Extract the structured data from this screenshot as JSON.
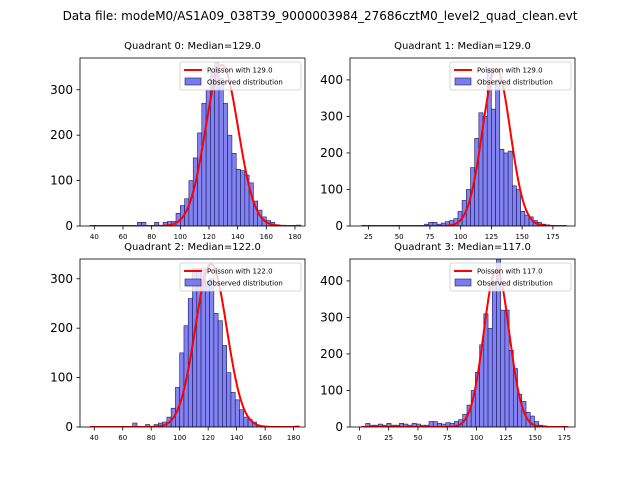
{
  "suptitle": "Data file: modeM0/AS1A09_038T39_9000003984_27686cztM0_level2_quad_clean.evt",
  "colors": {
    "bar_fill": "#7b7bef",
    "bar_edge": "#1a1a60",
    "poisson_line": "#ff0000"
  },
  "chart_data": [
    {
      "type": "bar",
      "title": "Quadrant 0: Median=129.0",
      "median": 129.0,
      "legend": {
        "line_label": "Poisson with 129.0",
        "bar_label": "Observed distribution",
        "placement": "top-right"
      },
      "xlim": [
        30,
        187
      ],
      "ylim": [
        0,
        370
      ],
      "xticks": [
        40,
        60,
        80,
        100,
        120,
        140,
        160,
        180
      ],
      "yticks": [
        0,
        100,
        200,
        300
      ],
      "bin_width": 3,
      "bins_x": [
        37,
        40,
        43,
        46,
        49,
        52,
        55,
        58,
        61,
        64,
        67,
        70,
        73,
        76,
        79,
        82,
        85,
        88,
        91,
        94,
        97,
        100,
        103,
        106,
        109,
        112,
        115,
        118,
        121,
        124,
        127,
        130,
        133,
        136,
        139,
        142,
        145,
        148,
        151,
        154,
        157,
        160,
        163,
        166,
        169,
        172,
        175,
        178,
        181
      ],
      "bins_y": [
        1,
        0,
        0,
        0,
        0,
        0,
        0,
        0,
        0,
        0,
        0,
        8,
        8,
        0,
        0,
        8,
        0,
        8,
        10,
        10,
        28,
        45,
        60,
        100,
        150,
        205,
        270,
        300,
        340,
        360,
        325,
        270,
        200,
        160,
        125,
        122,
        112,
        95,
        55,
        35,
        20,
        12,
        8,
        3,
        0,
        0,
        0,
        0,
        2
      ],
      "poisson_mean": 129.0,
      "poisson_peak": 355
    },
    {
      "type": "bar",
      "title": "Quadrant 1: Median=129.0",
      "median": 129.0,
      "legend": {
        "line_label": "Poisson with 129.0",
        "bar_label": "Observed distribution",
        "placement": "top-right"
      },
      "xlim": [
        10,
        193
      ],
      "ylim": [
        0,
        460
      ],
      "xticks": [
        25,
        50,
        75,
        100,
        125,
        150,
        175
      ],
      "yticks": [
        0,
        100,
        200,
        300,
        400
      ],
      "bin_width": 3.4,
      "bins_x": [
        19.6,
        23,
        26.4,
        29.8,
        33.2,
        36.6,
        40,
        43.4,
        46.8,
        50.2,
        53.6,
        57,
        60.4,
        63.8,
        67.2,
        70.6,
        74,
        77.4,
        80.8,
        84.2,
        87.6,
        91,
        94.4,
        97.8,
        101.2,
        104.6,
        108,
        111.4,
        114.8,
        118.2,
        121.6,
        125,
        128.4,
        131.8,
        135.2,
        138.6,
        142,
        145.4,
        148.8,
        152.2,
        155.6,
        159,
        162.4,
        165.8,
        169.2,
        172.6,
        176,
        179.4,
        182.8
      ],
      "bins_y": [
        2,
        0,
        0,
        0,
        0,
        0,
        0,
        0,
        0,
        0,
        0,
        0,
        0,
        0,
        0,
        5,
        10,
        10,
        5,
        8,
        12,
        15,
        20,
        40,
        70,
        100,
        160,
        240,
        310,
        300,
        430,
        320,
        400,
        210,
        200,
        205,
        110,
        100,
        40,
        30,
        25,
        15,
        10,
        5,
        3,
        0,
        0,
        0,
        1
      ],
      "poisson_mean": 129.0,
      "poisson_peak": 430
    },
    {
      "type": "bar",
      "title": "Quadrant 2: Median=122.0",
      "median": 122.0,
      "legend": {
        "line_label": "Poisson with 122.0",
        "bar_label": "Observed distribution",
        "placement": "top-right"
      },
      "xlim": [
        30,
        188
      ],
      "ylim": [
        0,
        340
      ],
      "xticks": [
        40,
        60,
        80,
        100,
        120,
        140,
        160,
        180
      ],
      "yticks": [
        0,
        100,
        200,
        300
      ],
      "bin_width": 3,
      "bins_x": [
        37,
        40,
        43,
        46,
        49,
        52,
        55,
        58,
        61,
        64,
        67,
        70,
        73,
        76,
        79,
        82,
        85,
        88,
        91,
        94,
        97,
        100,
        103,
        106,
        109,
        112,
        115,
        118,
        121,
        124,
        127,
        130,
        133,
        136,
        139,
        142,
        145,
        148,
        151,
        154,
        157,
        160,
        163,
        166,
        169,
        172,
        175,
        178,
        181
      ],
      "bins_y": [
        1,
        0,
        0,
        0,
        0,
        0,
        0,
        0,
        0,
        0,
        8,
        0,
        0,
        5,
        0,
        5,
        8,
        10,
        20,
        38,
        80,
        150,
        205,
        260,
        320,
        320,
        320,
        295,
        300,
        230,
        215,
        165,
        110,
        70,
        55,
        35,
        20,
        15,
        10,
        3,
        0,
        0,
        0,
        0,
        0,
        0,
        0,
        0,
        2
      ],
      "poisson_mean": 122.0,
      "poisson_peak": 330
    },
    {
      "type": "bar",
      "title": "Quadrant 3: Median=117.0",
      "median": 117.0,
      "legend": {
        "line_label": "Poisson with 117.0",
        "bar_label": "Observed distribution",
        "placement": "top-right"
      },
      "xlim": [
        -8,
        184
      ],
      "ylim": [
        0,
        460
      ],
      "xticks": [
        0,
        25,
        50,
        75,
        100,
        125,
        150,
        175
      ],
      "yticks": [
        0,
        100,
        200,
        300,
        400
      ],
      "bin_width": 3.6,
      "bins_x": [
        1.8,
        5.4,
        9,
        12.6,
        16.2,
        19.8,
        23.4,
        27,
        30.6,
        34.2,
        37.8,
        41.4,
        45,
        48.6,
        52.2,
        55.8,
        59.4,
        63,
        66.6,
        70.2,
        73.8,
        77.4,
        81,
        84.6,
        88.2,
        91.8,
        95.4,
        99,
        102.6,
        106.2,
        109.8,
        113.4,
        117,
        120.6,
        124.2,
        127.8,
        131.4,
        135,
        138.6,
        142.2,
        145.8,
        149.4,
        153,
        156.6,
        160.2,
        163.8,
        167.4,
        171,
        174.6
      ],
      "bins_y": [
        2,
        10,
        5,
        5,
        8,
        5,
        10,
        5,
        5,
        10,
        8,
        5,
        10,
        8,
        5,
        5,
        15,
        15,
        10,
        8,
        12,
        10,
        15,
        20,
        35,
        60,
        100,
        150,
        225,
        310,
        270,
        400,
        460,
        320,
        320,
        210,
        160,
        90,
        70,
        40,
        30,
        15,
        5,
        3,
        1,
        0,
        0,
        0,
        1
      ],
      "poisson_mean": 117.0,
      "poisson_peak": 430
    }
  ]
}
